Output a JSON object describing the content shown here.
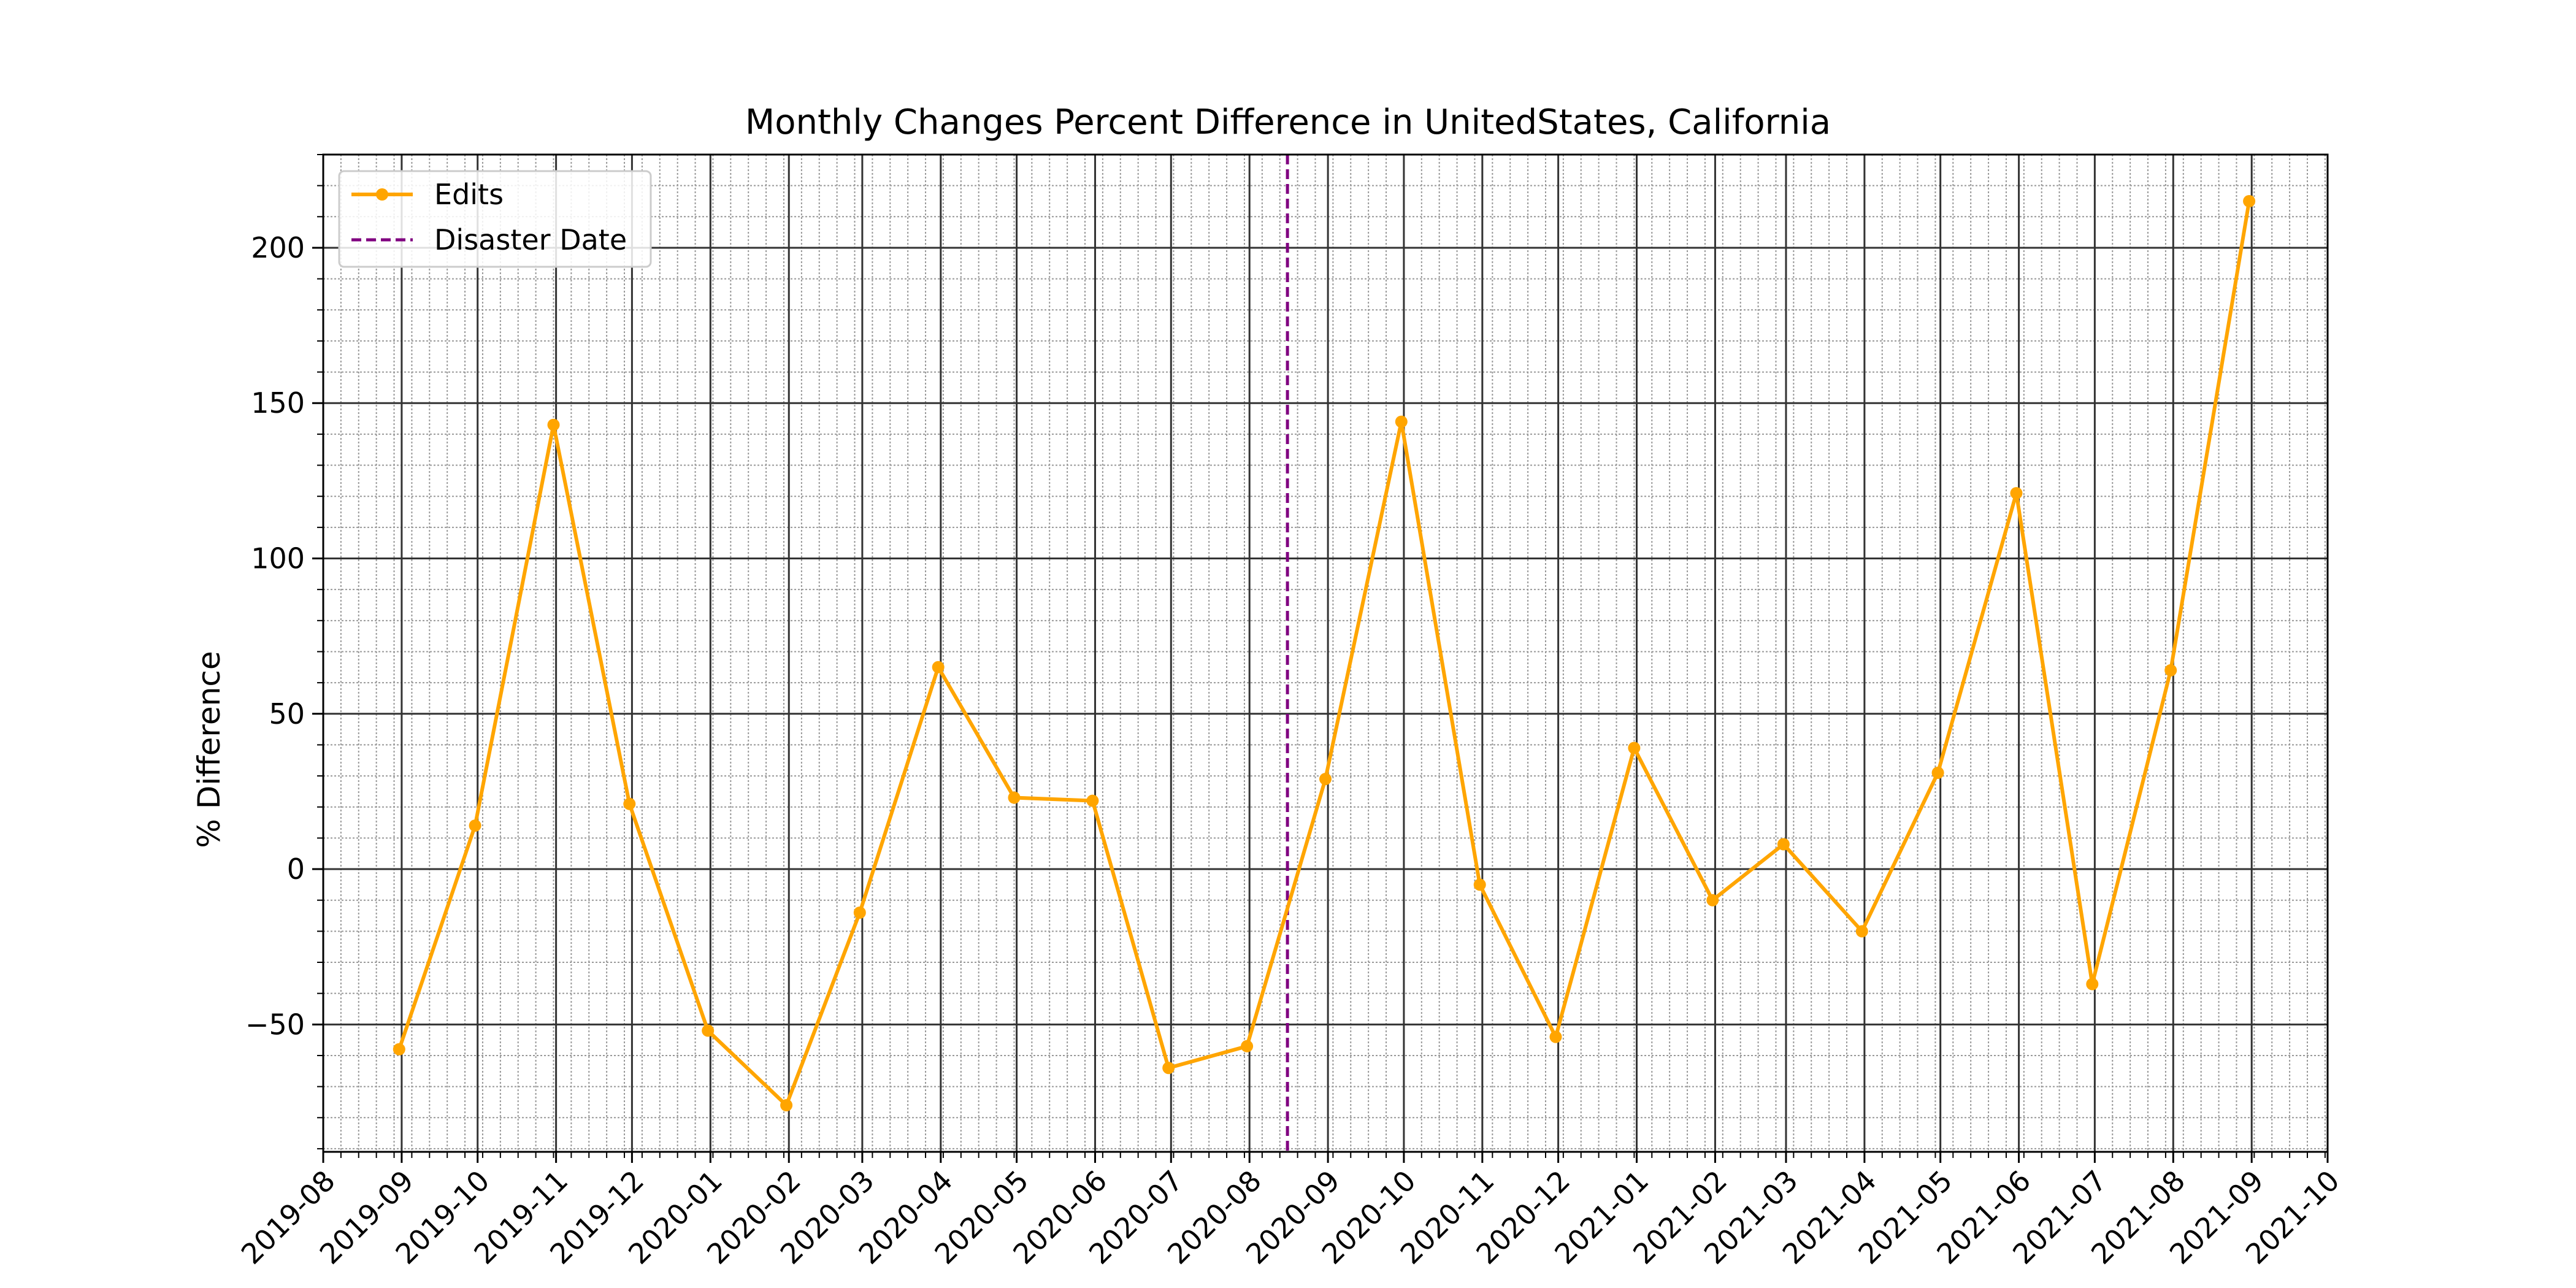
{
  "chart_data": {
    "type": "line",
    "title": "Monthly Changes Percent Difference in UnitedStates, California",
    "xlabel": "",
    "ylabel": "% Difference",
    "x_ticks": [
      "2019-08",
      "2019-09",
      "2019-10",
      "2019-11",
      "2019-12",
      "2020-01",
      "2020-02",
      "2020-03",
      "2020-04",
      "2020-05",
      "2020-06",
      "2020-07",
      "2020-08",
      "2020-09",
      "2020-10",
      "2020-11",
      "2020-12",
      "2021-01",
      "2021-02",
      "2021-03",
      "2021-04",
      "2021-05",
      "2021-06",
      "2021-07",
      "2021-08",
      "2021-09",
      "2021-10"
    ],
    "y_ticks": [
      -50,
      0,
      50,
      100,
      150,
      200
    ],
    "ylim": [
      -91,
      230
    ],
    "xlim": [
      "2019-08-01",
      "2021-10-01"
    ],
    "grid": true,
    "legend_position": "top-left",
    "colors": {
      "edits": "#FFA500",
      "disaster": "#800080",
      "grid_major": "#333333",
      "grid_minor": "#999999"
    },
    "series": [
      {
        "name": "Edits",
        "x": [
          "2019-08-31",
          "2019-09-30",
          "2019-10-31",
          "2019-11-30",
          "2019-12-31",
          "2020-01-31",
          "2020-02-29",
          "2020-03-31",
          "2020-04-30",
          "2020-05-31",
          "2020-06-30",
          "2020-07-31",
          "2020-08-31",
          "2020-09-30",
          "2020-10-31",
          "2020-11-30",
          "2020-12-31",
          "2021-01-31",
          "2021-02-28",
          "2021-03-31",
          "2021-04-30",
          "2021-05-31",
          "2021-06-30",
          "2021-07-31",
          "2021-08-31"
        ],
        "values": [
          -58,
          14,
          143,
          21,
          -52,
          -76,
          -14,
          65,
          23,
          22,
          -64,
          -57,
          29,
          144,
          -5,
          -54,
          39,
          -10,
          8,
          -20,
          31,
          121,
          -37,
          64,
          215
        ]
      }
    ],
    "vlines": [
      {
        "name": "Disaster Date",
        "x": "2020-08-16"
      }
    ]
  }
}
